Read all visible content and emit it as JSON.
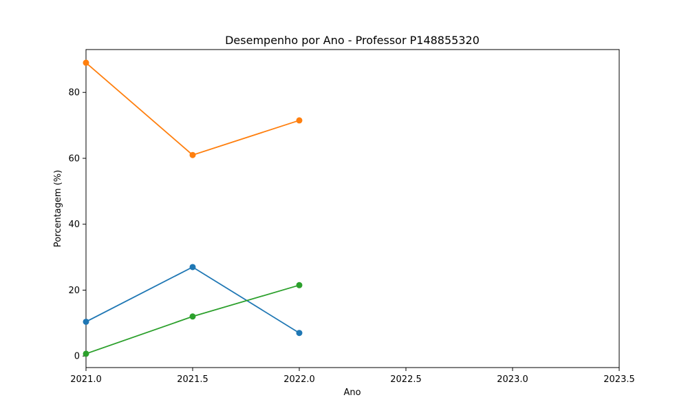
{
  "chart_data": {
    "type": "line",
    "title": "Desempenho por Ano - Professor P148855320",
    "xlabel": "Ano",
    "ylabel": "Porcentagem (%)",
    "x": [
      2021.0,
      2021.5,
      2022.0
    ],
    "xlim": [
      2021.0,
      2023.5
    ],
    "ylim": [
      -3.5,
      93
    ],
    "xticks": [
      2021.0,
      2021.5,
      2022.0,
      2022.5,
      2023.0,
      2023.5
    ],
    "xtick_labels": [
      "2021.0",
      "2021.5",
      "2022.0",
      "2022.5",
      "2023.0",
      "2023.5"
    ],
    "yticks": [
      0,
      20,
      40,
      60,
      80
    ],
    "ytick_labels": [
      "0",
      "20",
      "40",
      "60",
      "80"
    ],
    "grid": false,
    "series": [
      {
        "color": "#1f77b4",
        "values": [
          10.4,
          27.0,
          7.0
        ]
      },
      {
        "color": "#ff7f0e",
        "values": [
          89.0,
          61.0,
          71.5
        ]
      },
      {
        "color": "#2ca02c",
        "values": [
          0.7,
          12.0,
          21.5
        ]
      }
    ]
  }
}
